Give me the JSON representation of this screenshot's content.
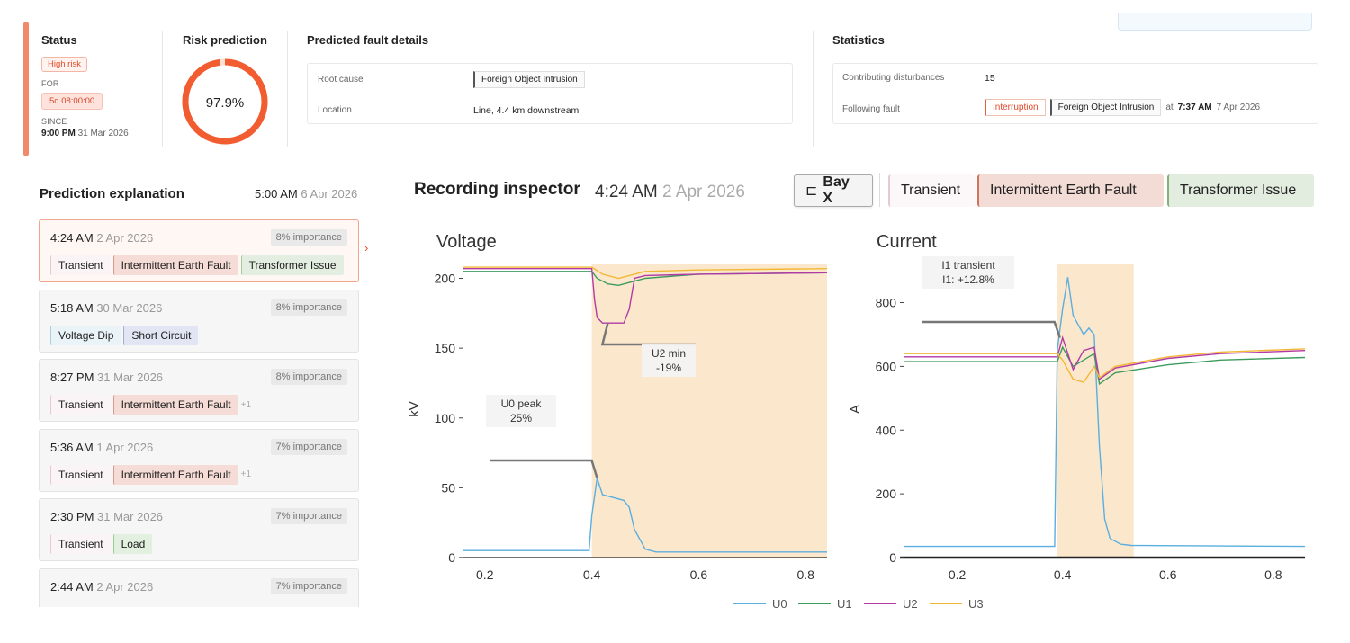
{
  "status": {
    "title": "Status",
    "risk_badge": "High risk",
    "for_label": "FOR",
    "for_value": "5d 08:00:00",
    "since_label": "SINCE",
    "since_time": "9:00 PM",
    "since_date": "31 Mar 2026"
  },
  "risk": {
    "title": "Risk prediction",
    "value": "97.9%",
    "fraction": 0.979
  },
  "fault_details": {
    "title": "Predicted fault details",
    "root_cause_label": "Root cause",
    "root_cause_value": "Foreign Object Intrusion",
    "location_label": "Location",
    "location_value": "Line, 4.4 km downstream"
  },
  "statistics": {
    "title": "Statistics",
    "contrib_label": "Contributing disturbances",
    "contrib_value": "15",
    "following_label": "Following fault",
    "following_tag1": "Interruption",
    "following_tag2": "Foreign Object Intrusion",
    "at_label": "at",
    "at_time": "7:37 AM",
    "at_date": "7 Apr 2026"
  },
  "explanation": {
    "title": "Prediction explanation",
    "time": "5:00 AM",
    "date": "6 Apr 2026",
    "items": [
      {
        "time": "4:24 AM",
        "date": "2 Apr 2026",
        "importance": "8% importance",
        "tags": [
          "Transient",
          "Intermittent Earth Fault",
          "Transformer Issue"
        ],
        "more": ""
      },
      {
        "time": "5:18 AM",
        "date": "30 Mar 2026",
        "importance": "8% importance",
        "tags": [
          "Voltage Dip",
          "Short Circuit"
        ],
        "more": ""
      },
      {
        "time": "8:27 PM",
        "date": "31 Mar 2026",
        "importance": "8% importance",
        "tags": [
          "Transient",
          "Intermittent Earth Fault"
        ],
        "more": "+1"
      },
      {
        "time": "5:36 AM",
        "date": "1 Apr 2026",
        "importance": "7% importance",
        "tags": [
          "Transient",
          "Intermittent Earth Fault"
        ],
        "more": "+1"
      },
      {
        "time": "2:30 PM",
        "date": "31 Mar 2026",
        "importance": "7% importance",
        "tags": [
          "Transient",
          "Load"
        ],
        "more": ""
      },
      {
        "time": "2:44 AM",
        "date": "2 Apr 2026",
        "importance": "7% importance",
        "tags": [],
        "more": ""
      }
    ]
  },
  "inspector": {
    "title": "Recording inspector",
    "time": "4:24 AM",
    "date": "2 Apr 2026",
    "bay_label": "Bay X",
    "tag1": "Transient",
    "tag2": "Intermittent Earth Fault",
    "tag3": "Transformer Issue"
  },
  "chart_data": [
    {
      "type": "line",
      "title": "Voltage",
      "ylabel": "kV",
      "xlim": [
        0.16,
        0.84
      ],
      "ylim": [
        0,
        210
      ],
      "xticks": [
        "0.2",
        "0.4",
        "0.6",
        "0.8"
      ],
      "yticks": [
        "0",
        "50",
        "100",
        "150",
        "200"
      ],
      "highlight": [
        0.4,
        0.84
      ],
      "annotations": [
        {
          "line1": "U0 peak",
          "line2": "25%"
        },
        {
          "line1": "U2 min",
          "line2": "-19%"
        }
      ],
      "series": [
        {
          "name": "U0",
          "color": "#5aaee0",
          "x": [
            0.16,
            0.395,
            0.4,
            0.41,
            0.42,
            0.44,
            0.46,
            0.47,
            0.48,
            0.5,
            0.52,
            0.6,
            0.7,
            0.84
          ],
          "y": [
            5,
            5,
            30,
            57,
            45,
            43,
            41,
            36,
            20,
            6,
            4,
            4,
            4,
            4
          ]
        },
        {
          "name": "U1",
          "color": "#3e9b5e",
          "x": [
            0.16,
            0.4,
            0.41,
            0.43,
            0.45,
            0.47,
            0.5,
            0.6,
            0.84
          ],
          "y": [
            205,
            205,
            200,
            196,
            195,
            197,
            200,
            203,
            204
          ]
        },
        {
          "name": "U2",
          "color": "#b23aa6",
          "x": [
            0.16,
            0.4,
            0.405,
            0.41,
            0.42,
            0.43,
            0.44,
            0.46,
            0.47,
            0.48,
            0.5,
            0.6,
            0.84
          ],
          "y": [
            207,
            207,
            185,
            172,
            168,
            168,
            168,
            168,
            178,
            200,
            202,
            203,
            204
          ]
        },
        {
          "name": "U3",
          "color": "#f2b835",
          "x": [
            0.16,
            0.4,
            0.42,
            0.45,
            0.48,
            0.5,
            0.6,
            0.84
          ],
          "y": [
            208,
            208,
            203,
            200,
            203,
            205,
            206,
            207
          ]
        }
      ]
    },
    {
      "type": "line",
      "title": "Current",
      "ylabel": "A",
      "xlim": [
        0.1,
        0.86
      ],
      "ylim": [
        0,
        920
      ],
      "xticks": [
        "0.2",
        "0.4",
        "0.6",
        "0.8"
      ],
      "yticks": [
        "0",
        "200",
        "400",
        "600",
        "800"
      ],
      "highlight": [
        0.39,
        0.535
      ],
      "annotations": [
        {
          "line1": "I1 transient",
          "line2": "I1: +12.8%"
        }
      ],
      "series": [
        {
          "name": "U0",
          "color": "#5aaee0",
          "x": [
            0.1,
            0.385,
            0.39,
            0.4,
            0.41,
            0.42,
            0.43,
            0.44,
            0.45,
            0.46,
            0.47,
            0.48,
            0.49,
            0.51,
            0.53,
            0.86
          ],
          "y": [
            35,
            35,
            650,
            780,
            880,
            760,
            730,
            700,
            720,
            700,
            350,
            120,
            60,
            42,
            38,
            35
          ]
        },
        {
          "name": "U1",
          "color": "#3e9b5e",
          "x": [
            0.1,
            0.39,
            0.4,
            0.42,
            0.44,
            0.46,
            0.47,
            0.5,
            0.6,
            0.7,
            0.86
          ],
          "y": [
            615,
            615,
            660,
            600,
            620,
            640,
            545,
            580,
            605,
            620,
            628
          ]
        },
        {
          "name": "U2",
          "color": "#b23aa6",
          "x": [
            0.1,
            0.39,
            0.4,
            0.42,
            0.44,
            0.46,
            0.47,
            0.5,
            0.6,
            0.7,
            0.86
          ],
          "y": [
            630,
            630,
            690,
            590,
            650,
            660,
            560,
            595,
            625,
            640,
            650
          ]
        },
        {
          "name": "U3",
          "color": "#f2b835",
          "x": [
            0.1,
            0.39,
            0.4,
            0.42,
            0.44,
            0.46,
            0.47,
            0.5,
            0.6,
            0.7,
            0.86
          ],
          "y": [
            640,
            640,
            620,
            560,
            550,
            600,
            565,
            600,
            630,
            645,
            655
          ]
        }
      ]
    }
  ],
  "legend": [
    "U0",
    "U1",
    "U2",
    "U3"
  ]
}
